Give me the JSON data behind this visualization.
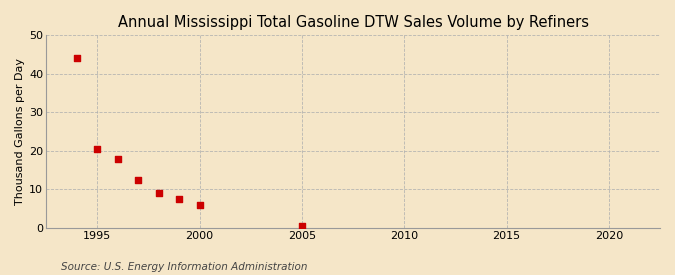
{
  "title": "Annual Mississippi Total Gasoline DTW Sales Volume by Refiners",
  "ylabel": "Thousand Gallons per Day",
  "source": "Source: U.S. Energy Information Administration",
  "x_data": [
    1994,
    1995,
    1996,
    1997,
    1998,
    1999,
    2000,
    2005
  ],
  "y_data": [
    44.0,
    20.5,
    18.0,
    12.5,
    9.0,
    7.5,
    6.0,
    0.5
  ],
  "marker_color": "#cc0000",
  "marker": "s",
  "marker_size": 4,
  "background_color": "#f5e6c8",
  "grid_color": "#b0b0b0",
  "xlim": [
    1992.5,
    2022.5
  ],
  "ylim": [
    0,
    50
  ],
  "yticks": [
    0,
    10,
    20,
    30,
    40,
    50
  ],
  "xticks": [
    1995,
    2000,
    2005,
    2010,
    2015,
    2020
  ],
  "title_fontsize": 10.5,
  "ylabel_fontsize": 8,
  "tick_fontsize": 8,
  "source_fontsize": 7.5
}
